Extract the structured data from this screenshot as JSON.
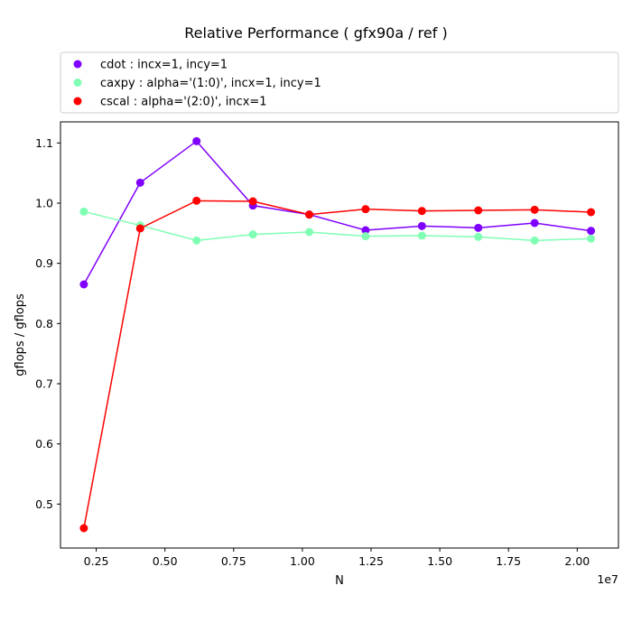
{
  "chart_data": {
    "type": "line",
    "title": "Relative Performance ( gfx90a /  ref )",
    "xlabel": "N",
    "ylabel": "gflops / gflops",
    "x_offset_label": "1e7",
    "xlim": [
      0.12,
      2.15
    ],
    "ylim": [
      0.427,
      1.135
    ],
    "xticks": [
      0.25,
      0.5,
      0.75,
      1.0,
      1.25,
      1.5,
      1.75,
      2.0
    ],
    "xtick_labels": [
      "0.25",
      "0.50",
      "0.75",
      "1.00",
      "1.25",
      "1.50",
      "1.75",
      "2.00"
    ],
    "yticks": [
      0.5,
      0.6,
      0.7,
      0.8,
      0.9,
      1.0,
      1.1
    ],
    "ytick_labels": [
      "0.5",
      "0.6",
      "0.7",
      "0.8",
      "0.9",
      "1.0",
      "1.1"
    ],
    "legend_position": "top, above plot",
    "x": [
      0.205,
      0.41,
      0.615,
      0.82,
      1.025,
      1.23,
      1.435,
      1.64,
      1.845,
      2.05
    ],
    "series": [
      {
        "name": "cdot :  incx=1, incy=1",
        "color": "#8000ff",
        "values": [
          0.865,
          1.034,
          1.103,
          0.996,
          0.981,
          0.955,
          0.962,
          0.959,
          0.967,
          0.954
        ]
      },
      {
        "name": "caxpy :  alpha='(1:0)', incx=1, incy=1",
        "color": "#80ffb4",
        "values": [
          0.986,
          0.963,
          0.938,
          0.948,
          0.952,
          0.945,
          0.946,
          0.944,
          0.938,
          0.941
        ]
      },
      {
        "name": "cscal :  alpha='(2:0)', incx=1",
        "color": "#ff0000",
        "values": [
          0.46,
          0.958,
          1.004,
          1.003,
          0.981,
          0.99,
          0.987,
          0.988,
          0.989,
          0.985
        ]
      }
    ]
  }
}
